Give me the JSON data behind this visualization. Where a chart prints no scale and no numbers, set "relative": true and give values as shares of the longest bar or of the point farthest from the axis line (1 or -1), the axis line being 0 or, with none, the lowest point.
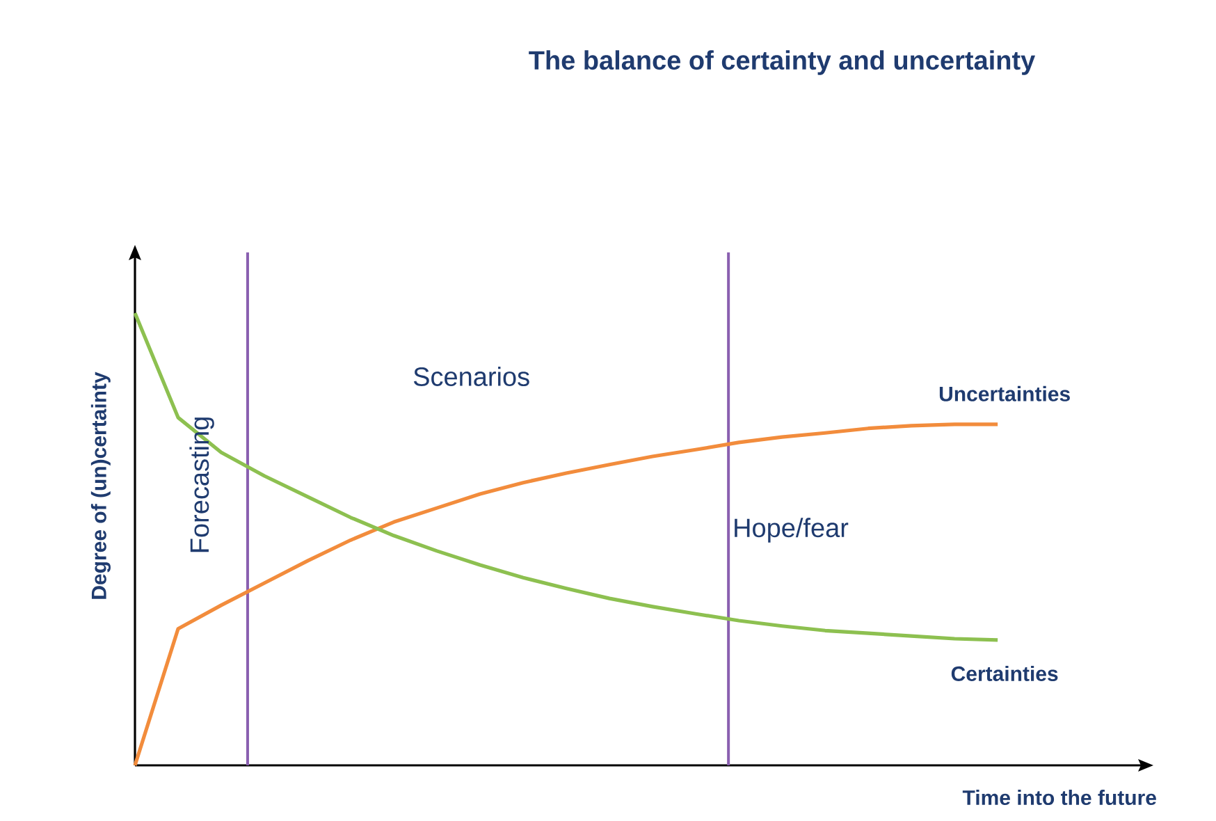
{
  "chart_data": {
    "type": "line",
    "title": "The balance of certainty and uncertainty",
    "xlabel": "Time into the future",
    "ylabel": "Degree of (un)certainty",
    "relative": true,
    "categories": [
      null,
      null,
      null,
      null,
      null,
      null,
      null,
      null,
      null,
      null,
      null,
      null,
      null,
      null,
      null,
      null,
      null,
      null,
      null,
      null,
      null
    ],
    "series": [
      {
        "name": "Uncertainties",
        "color": "#f28c3c",
        "values": [
          0,
          0.302,
          0.354,
          0.403,
          0.452,
          0.498,
          0.538,
          0.569,
          0.6,
          0.625,
          0.646,
          0.665,
          0.683,
          0.698,
          0.714,
          0.726,
          0.735,
          0.745,
          0.751,
          0.754,
          0.754
        ]
      },
      {
        "name": "Certainties",
        "color": "#8dc050",
        "values": [
          1,
          0.769,
          0.692,
          0.64,
          0.594,
          0.548,
          0.508,
          0.474,
          0.443,
          0.415,
          0.391,
          0.369,
          0.351,
          0.335,
          0.32,
          0.308,
          0.298,
          0.292,
          0.286,
          0.28,
          0.277
        ]
      }
    ],
    "annotations": [
      "Forecasting",
      "Scenarios",
      "Hope/fear"
    ]
  }
}
